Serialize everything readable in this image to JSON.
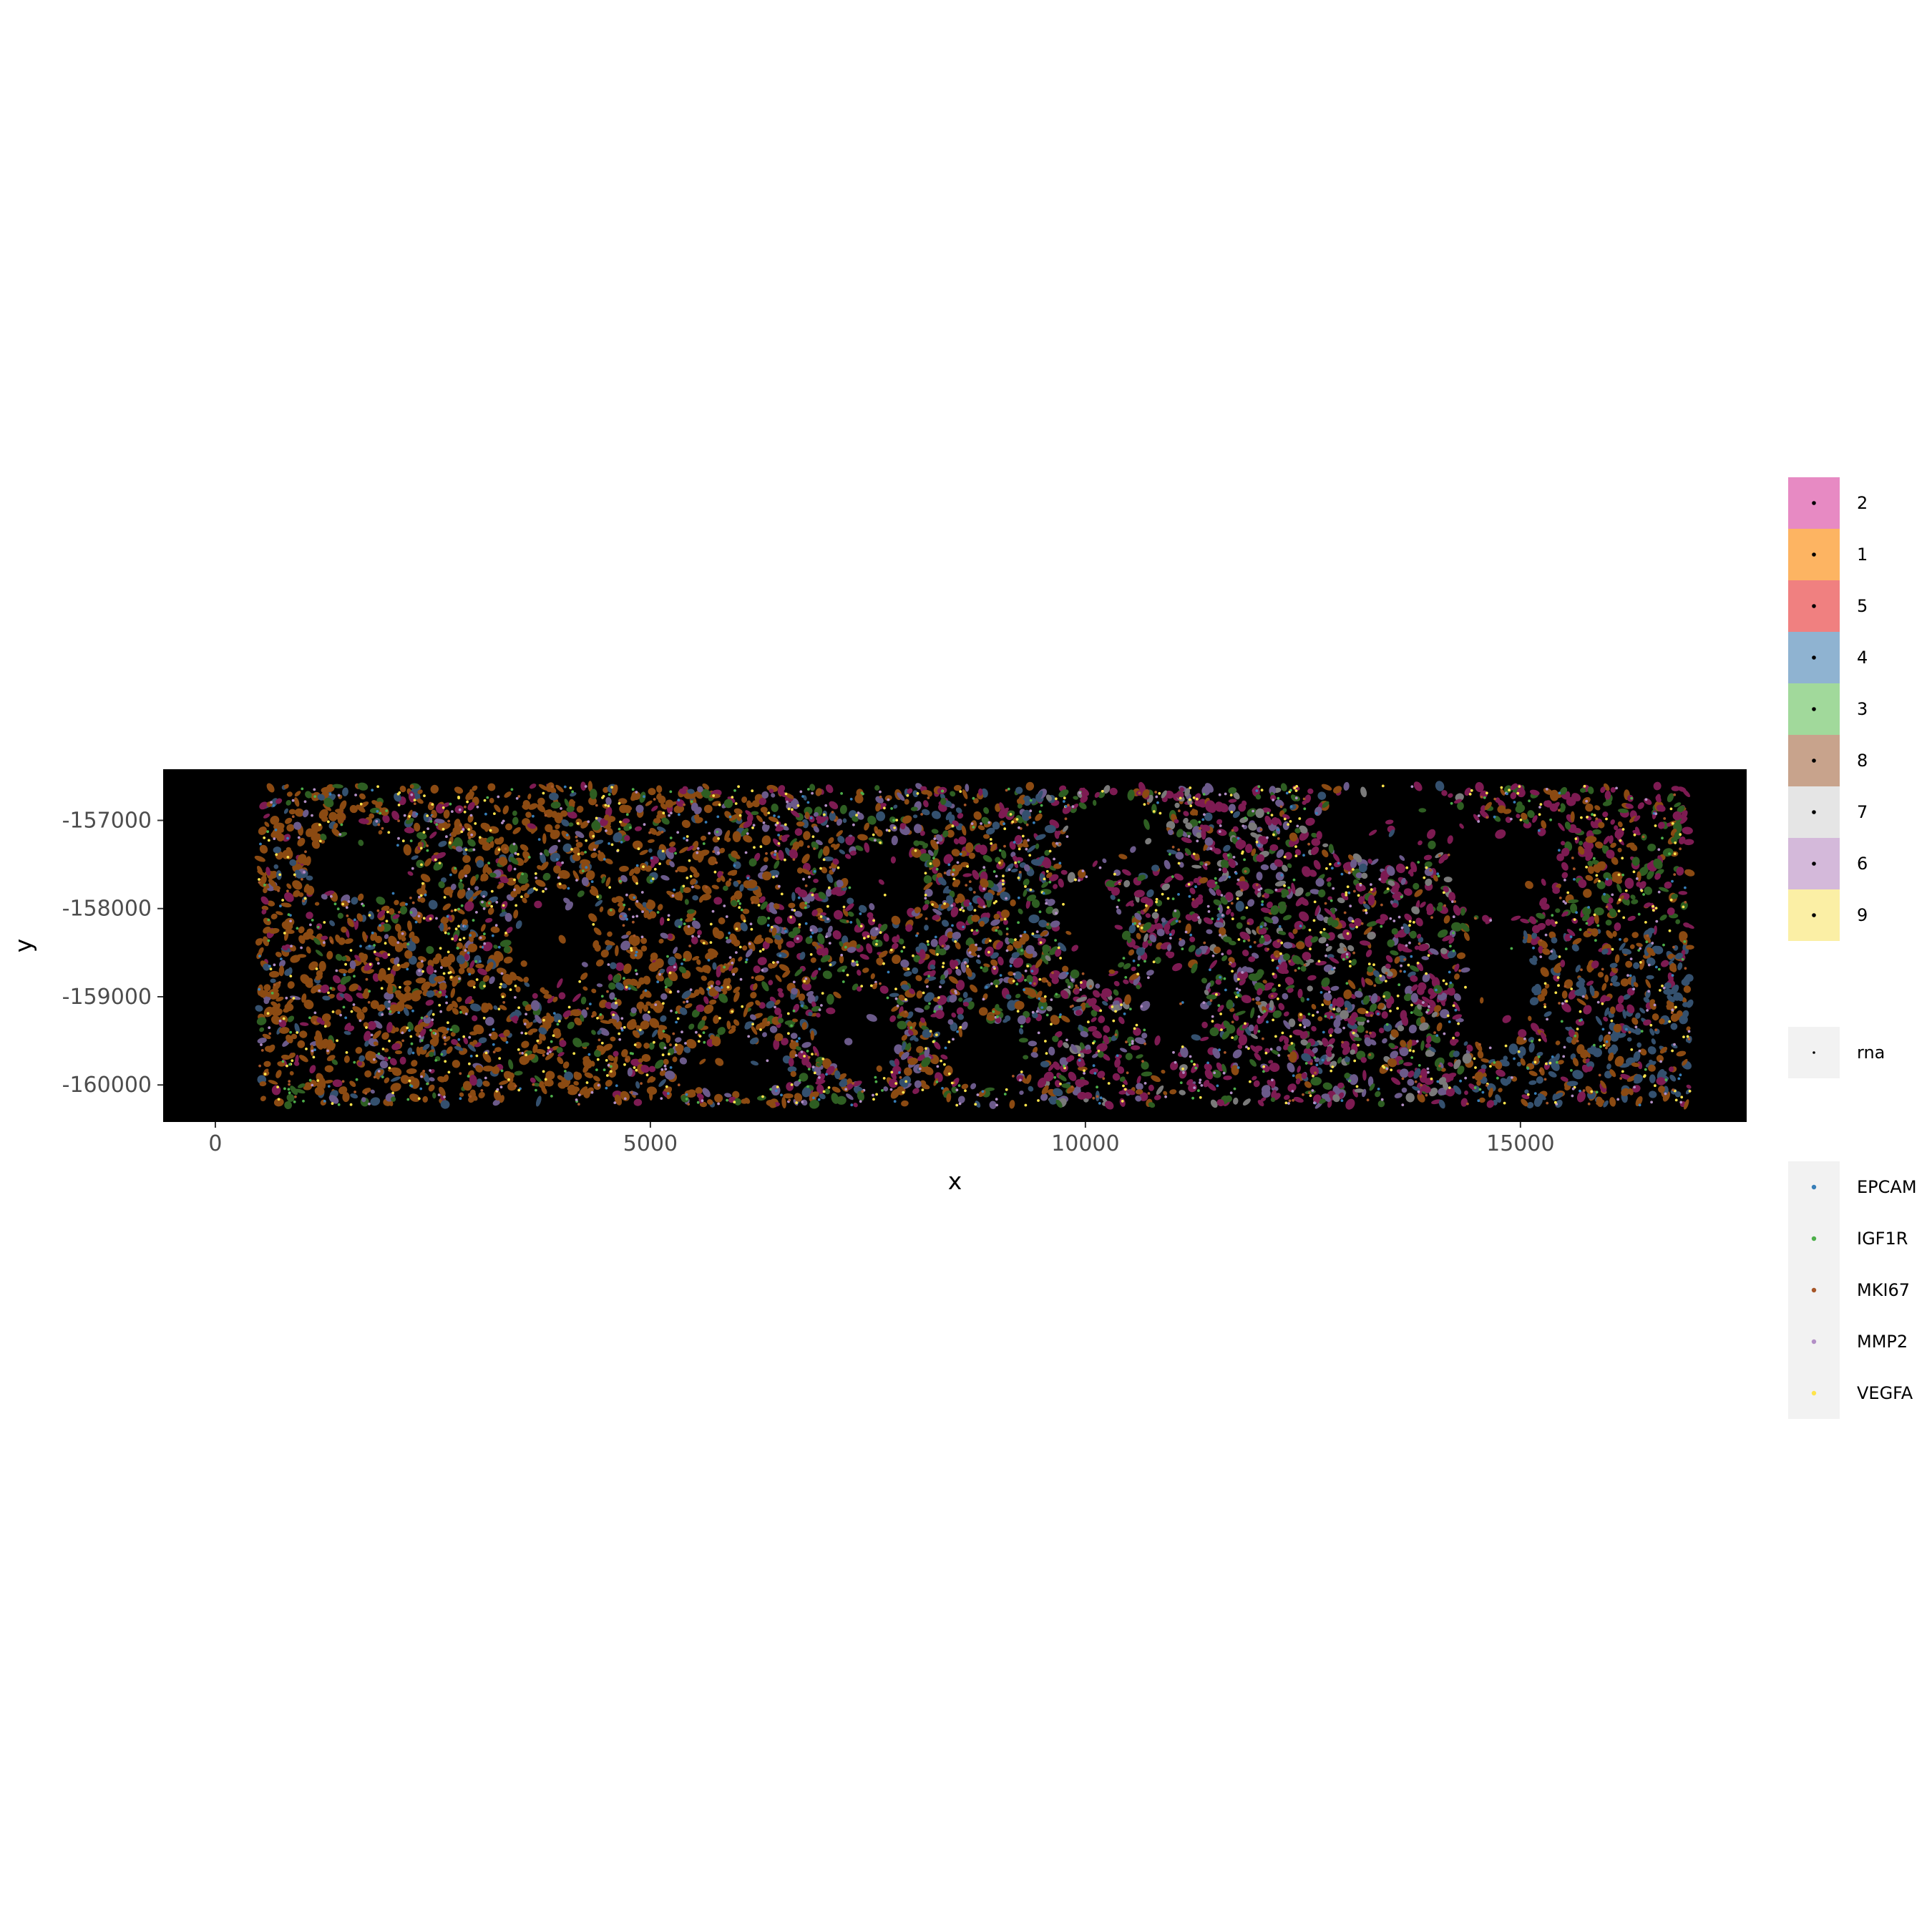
{
  "chart_data": {
    "type": "scatter",
    "xlabel": "x",
    "ylabel": "y",
    "xlim": [
      -600,
      17600
    ],
    "ylim": [
      -160420,
      -156420
    ],
    "x_ticks": [
      0,
      5000,
      10000,
      15000
    ],
    "x_tick_labels": [
      "0",
      "5000",
      "10000",
      "15000"
    ],
    "y_ticks": [
      -157000,
      -158000,
      -159000,
      -160000
    ],
    "y_tick_labels": [
      "-157000",
      "-158000",
      "-159000",
      "-160000"
    ],
    "tissue_extent": {
      "x": [
        500,
        16950
      ],
      "y": [
        -160230,
        -156610
      ]
    },
    "panel_background": "#000000",
    "grid": false,
    "legend_position": "right",
    "cell_clusters": {
      "title": "",
      "entries": [
        {
          "name": "2",
          "color": "#E78AC3"
        },
        {
          "name": "1",
          "color": "#FDB462"
        },
        {
          "name": "5",
          "color": "#F08080"
        },
        {
          "name": "4",
          "color": "#8FB3D1"
        },
        {
          "name": "3",
          "color": "#A1D99B"
        },
        {
          "name": "8",
          "color": "#C8A38C"
        },
        {
          "name": "7",
          "color": "#E5E5E5"
        },
        {
          "name": "6",
          "color": "#D4B9DA"
        },
        {
          "name": "9",
          "color": "#FBEFA5"
        }
      ]
    },
    "rna_layer": {
      "entries": [
        {
          "name": "rna",
          "color": "#000000"
        }
      ]
    },
    "genes": {
      "entries": [
        {
          "name": "EPCAM",
          "color": "#377EB8"
        },
        {
          "name": "IGF1R",
          "color": "#4DAF4A"
        },
        {
          "name": "MKI67",
          "color": "#A65628"
        },
        {
          "name": "MMP2",
          "color": "#B38FC6"
        },
        {
          "name": "VEGFA",
          "color": "#FFE44C"
        }
      ]
    },
    "cell_fill_colors": {
      "brown": "#8B4A12",
      "magenta": "#7D1B52",
      "green": "#2E5E22",
      "blue": "#34506E",
      "grey": "#7A7A7A",
      "lavender": "#6B5A8A"
    }
  }
}
